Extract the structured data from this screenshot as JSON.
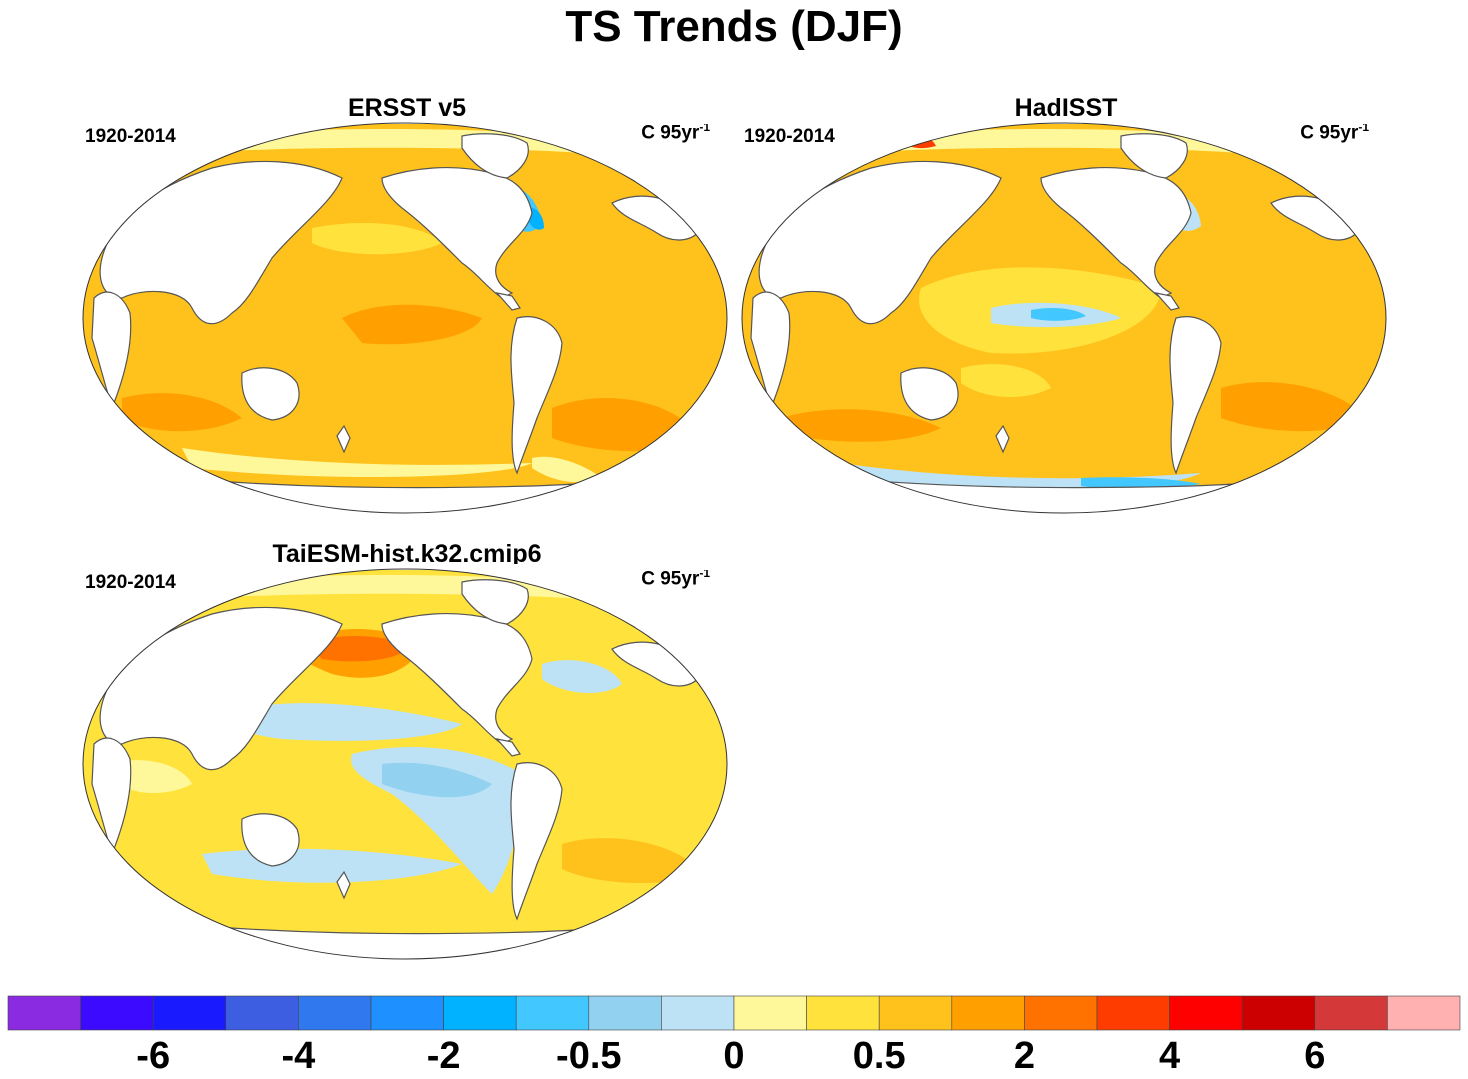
{
  "title": "TS Trends (DJF)",
  "panels": [
    {
      "title": "ERSST v5",
      "period": "1920-2014",
      "units": "C 95yr",
      "units_exp": "-1"
    },
    {
      "title": "HadISST",
      "period": "1920-2014",
      "units": "C 95yr",
      "units_exp": "-1"
    },
    {
      "title": "TaiESM-hist.k32.cmip6",
      "period": "1920-2014",
      "units": "C 95yr",
      "units_exp": "-1"
    }
  ],
  "colorbar": {
    "colors": [
      "#8a2be2",
      "#3c0aff",
      "#1a1aff",
      "#3d5ee0",
      "#2f78ee",
      "#1e90ff",
      "#00b2ff",
      "#42c7ff",
      "#92d1ef",
      "#bde2f6",
      "#fff89a",
      "#ffe23c",
      "#ffc21c",
      "#ffa000",
      "#ff7200",
      "#ff3c00",
      "#ff0000",
      "#cc0000",
      "#d43838",
      "#ffb0b0"
    ],
    "tick_labels": [
      "-6",
      "-4",
      "-2",
      "-0.5",
      "0",
      "0.5",
      "2",
      "4",
      "6"
    ]
  },
  "colors": {
    "land": "#ffffff",
    "coast": "#555555"
  }
}
